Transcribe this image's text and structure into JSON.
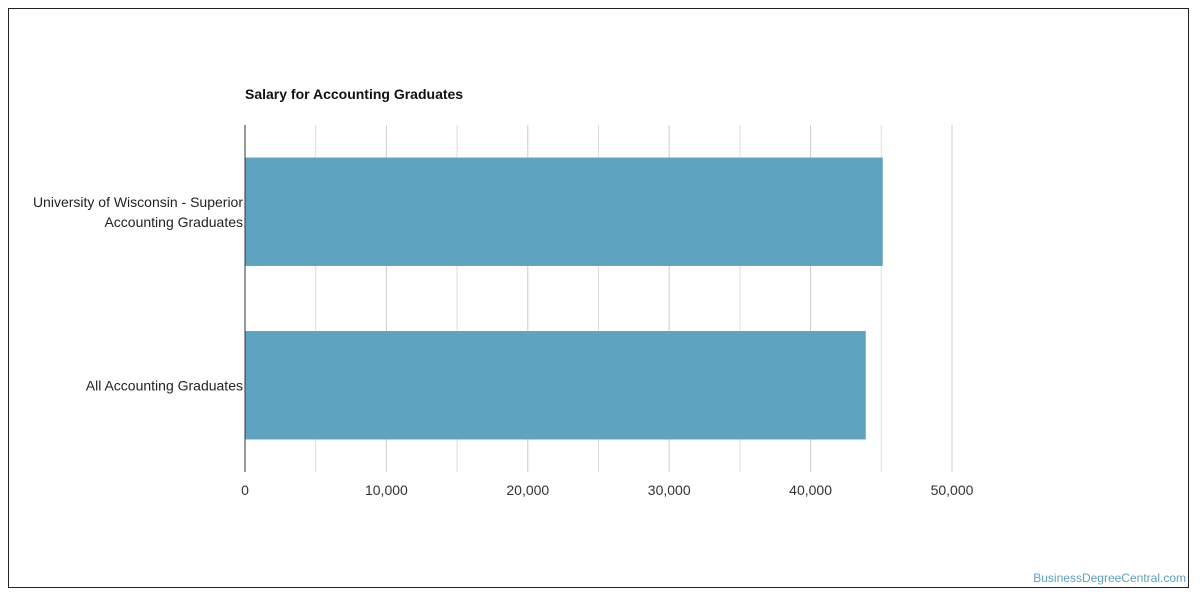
{
  "chart_data": {
    "type": "bar",
    "orientation": "horizontal",
    "title": "Salary for Accounting Graduates",
    "categories": [
      [
        "University of Wisconsin - Superior",
        "Accounting Graduates"
      ],
      [
        "All Accounting Graduates"
      ]
    ],
    "values": [
      45100,
      43900
    ],
    "xlim": [
      0,
      50000
    ],
    "xticks": [
      "0",
      "10,000",
      "20,000",
      "30,000",
      "40,000",
      "50,000"
    ],
    "xtick_values": [
      0,
      10000,
      20000,
      30000,
      40000,
      50000
    ],
    "minor_grid_values": [
      5000,
      15000,
      25000,
      35000,
      45000
    ],
    "grid": true,
    "bar_color": "#5ea3bf",
    "grid_color": "#dddddd"
  },
  "watermark": "BusinessDegreeCentral.com"
}
